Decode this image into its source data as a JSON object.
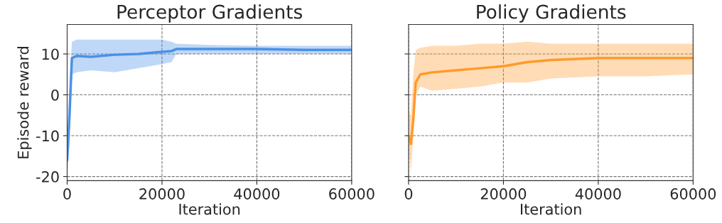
{
  "chart_data": [
    {
      "type": "line",
      "title": "Perceptor Gradients",
      "xlabel": "Iteration",
      "ylabel": "Episode reward",
      "xlim": [
        0,
        60000
      ],
      "ylim": [
        -21,
        17.2
      ],
      "xticks": [
        0,
        20000,
        40000,
        60000
      ],
      "yticks": [
        -20,
        -10,
        0,
        10
      ],
      "grid": true,
      "series": [
        {
          "color": "#4a90e8",
          "x": [
            0,
            500,
            1000,
            2000,
            5000,
            10000,
            15000,
            20000,
            22000,
            23000,
            30000,
            40000,
            50000,
            60000
          ],
          "values": [
            -16,
            -5,
            9,
            9.5,
            9.3,
            9.8,
            10,
            10.5,
            10.7,
            11.2,
            11.2,
            11.2,
            11,
            11
          ],
          "lower": [
            -20,
            -12,
            5,
            5.5,
            6,
            5.5,
            6.5,
            7.5,
            8,
            10,
            10,
            10,
            10,
            10
          ],
          "upper": [
            -10,
            2,
            13,
            13.5,
            13.5,
            13.5,
            13.5,
            13.5,
            13,
            12.5,
            12.2,
            12,
            12,
            12
          ]
        }
      ]
    },
    {
      "type": "line",
      "title": "Policy Gradients",
      "xlabel": "Iteration",
      "xlim": [
        0,
        60000
      ],
      "ylim": [
        -21,
        17.2
      ],
      "xticks": [
        0,
        20000,
        40000,
        60000
      ],
      "yticks": [
        -20,
        -10,
        0,
        10
      ],
      "grid": true,
      "tick_labels": "x",
      "series": [
        {
          "color": "#ff9a2a",
          "x": [
            0,
            500,
            1000,
            1500,
            2500,
            5000,
            10000,
            15000,
            20000,
            25000,
            30000,
            40000,
            50000,
            60000
          ],
          "values": [
            -10,
            -12,
            -6,
            3,
            5,
            5.5,
            6,
            6.5,
            7,
            8,
            8.5,
            9,
            9,
            9
          ],
          "lower": [
            -13,
            -19,
            -10,
            0,
            2,
            1,
            1.5,
            2,
            3,
            3,
            4,
            4.5,
            4.5,
            5
          ],
          "upper": [
            -4,
            -5,
            5,
            11,
            11.5,
            12,
            12,
            12.5,
            12.5,
            13,
            12.5,
            12.5,
            12.5,
            12.5
          ]
        }
      ]
    }
  ]
}
